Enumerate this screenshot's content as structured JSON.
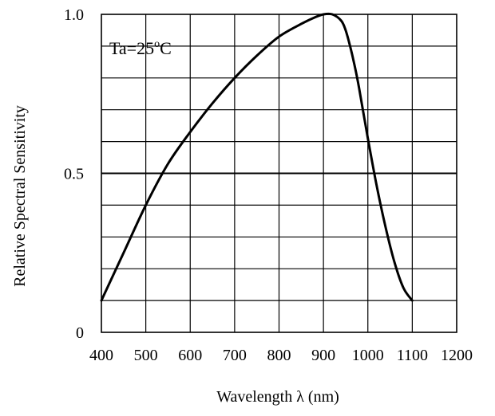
{
  "chart_data": {
    "type": "line",
    "title": "",
    "xlabel": "Wavelength  λ  (nm)",
    "ylabel": "Relative Spectral Sensitivity",
    "xlim": [
      400,
      1200
    ],
    "ylim": [
      0,
      1.0
    ],
    "x_ticks": [
      "400",
      "500",
      "600",
      "700",
      "800",
      "900",
      "1000",
      "1100",
      "1200"
    ],
    "y_ticks": [
      "0",
      "0.5",
      "1.0"
    ],
    "grid": true,
    "legend": "none",
    "annotation": {
      "prefix": "Ta=25",
      "degree": "o",
      "suffix": "C"
    },
    "series": [
      {
        "x": [
          400,
          450,
          500,
          550,
          600,
          650,
          700,
          750,
          800,
          850,
          880,
          900,
          920,
          940,
          950,
          960,
          970,
          980,
          1000,
          1020,
          1040,
          1060,
          1080,
          1100
        ],
        "y": [
          0.1,
          0.25,
          0.4,
          0.53,
          0.63,
          0.72,
          0.8,
          0.87,
          0.93,
          0.97,
          0.99,
          1.0,
          1.0,
          0.98,
          0.95,
          0.9,
          0.84,
          0.77,
          0.61,
          0.46,
          0.33,
          0.22,
          0.14,
          0.1
        ]
      }
    ],
    "colors": {
      "line": "#000000",
      "grid": "#000000"
    }
  }
}
